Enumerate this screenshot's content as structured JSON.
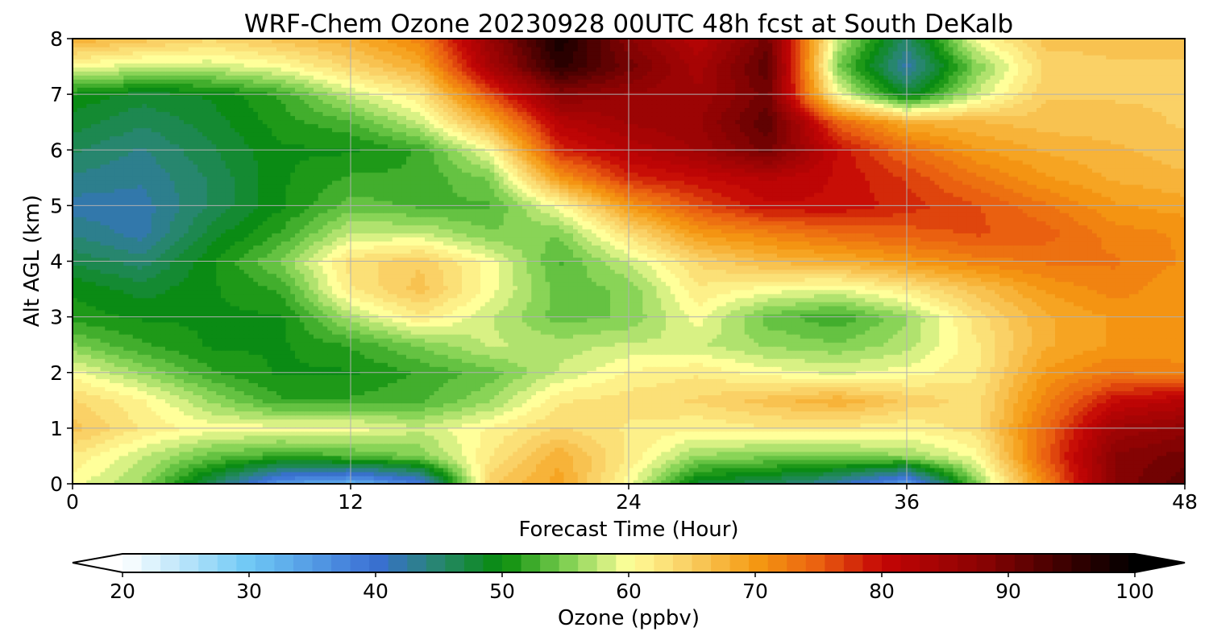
{
  "chart_data": {
    "type": "heatmap",
    "title": "WRF-Chem Ozone  20230928 00UTC 48h fcst at South DeKalb",
    "xlabel": "Forecast Time (Hour)",
    "ylabel": "Alt AGL (km)",
    "xlim": [
      0,
      48
    ],
    "ylim": [
      0,
      8
    ],
    "x_ticks": [
      0,
      12,
      24,
      36,
      48
    ],
    "y_ticks": [
      0,
      1,
      2,
      3,
      4,
      5,
      6,
      7,
      8
    ],
    "grid": true,
    "colorbar": {
      "label": "Ozone  (ppbv)",
      "ticks": [
        20,
        30,
        40,
        50,
        60,
        70,
        80,
        90,
        100
      ],
      "range": [
        20,
        100
      ],
      "extend": "both",
      "orientation": "horizontal",
      "placement": "bottom",
      "anchors": [
        {
          "value": 20,
          "color": "#ffffff"
        },
        {
          "value": 30,
          "color": "#6ec8f5"
        },
        {
          "value": 40,
          "color": "#3a6fd4"
        },
        {
          "value": 45,
          "color": "#27866e"
        },
        {
          "value": 50,
          "color": "#078c0a"
        },
        {
          "value": 55,
          "color": "#7ccf50"
        },
        {
          "value": 60,
          "color": "#ffff9a"
        },
        {
          "value": 65,
          "color": "#f9cc60"
        },
        {
          "value": 70,
          "color": "#f59a12"
        },
        {
          "value": 75,
          "color": "#ea6010"
        },
        {
          "value": 80,
          "color": "#c40505"
        },
        {
          "value": 88,
          "color": "#8a0303"
        },
        {
          "value": 96,
          "color": "#2a0000"
        },
        {
          "value": 100,
          "color": "#000000"
        }
      ]
    },
    "x": [
      0,
      3,
      6,
      9,
      12,
      15,
      18,
      21,
      24,
      27,
      30,
      33,
      36,
      39,
      42,
      45,
      48
    ],
    "y": [
      0,
      0.5,
      1,
      1.5,
      2,
      2.5,
      3,
      3.5,
      4,
      4.5,
      5,
      5.5,
      6,
      6.5,
      7,
      7.5,
      8
    ],
    "z": [
      [
        60,
        56,
        46,
        35,
        32,
        38,
        65,
        69,
        60,
        48,
        46,
        42,
        34,
        55,
        72,
        88,
        92
      ],
      [
        62,
        58,
        54,
        52,
        53,
        55,
        62,
        68,
        62,
        56,
        55,
        55,
        56,
        60,
        75,
        88,
        90
      ],
      [
        66,
        62,
        60,
        60,
        60,
        58,
        61,
        64,
        62,
        61,
        62,
        62,
        61,
        63,
        74,
        85,
        87
      ],
      [
        64,
        61,
        56,
        52,
        52,
        53,
        56,
        62,
        63,
        64,
        66,
        68,
        65,
        63,
        72,
        80,
        82
      ],
      [
        60,
        56,
        52,
        50,
        50,
        52,
        54,
        58,
        61,
        62,
        60,
        59,
        60,
        62,
        70,
        73,
        72
      ],
      [
        55,
        52,
        50,
        50,
        52,
        55,
        58,
        57,
        58,
        58,
        56,
        55,
        57,
        62,
        68,
        70,
        70
      ],
      [
        51,
        50,
        50,
        50,
        57,
        62,
        58,
        54,
        55,
        60,
        54,
        52,
        56,
        63,
        68,
        70,
        70
      ],
      [
        50,
        48,
        50,
        52,
        62,
        66,
        60,
        54,
        55,
        62,
        60,
        59,
        62,
        66,
        70,
        72,
        70
      ],
      [
        47,
        45,
        50,
        55,
        63,
        65,
        60,
        53,
        58,
        64,
        67,
        68,
        70,
        72,
        73,
        73,
        71
      ],
      [
        44,
        42,
        48,
        52,
        58,
        58,
        55,
        55,
        63,
        70,
        72,
        74,
        75,
        76,
        75,
        72,
        71
      ],
      [
        42,
        42,
        46,
        50,
        54,
        53,
        53,
        60,
        70,
        76,
        80,
        80,
        78,
        76,
        73,
        70,
        69
      ],
      [
        44,
        43,
        46,
        50,
        52,
        52,
        55,
        70,
        78,
        80,
        82,
        80,
        77,
        73,
        70,
        68,
        67
      ],
      [
        46,
        44,
        47,
        50,
        50,
        52,
        60,
        78,
        82,
        85,
        90,
        80,
        74,
        70,
        68,
        67,
        66
      ],
      [
        48,
        46,
        48,
        51,
        53,
        58,
        68,
        82,
        85,
        86,
        92,
        75,
        68,
        67,
        66,
        66,
        65
      ],
      [
        50,
        48,
        49,
        52,
        58,
        62,
        76,
        88,
        86,
        85,
        90,
        60,
        48,
        58,
        65,
        65,
        65
      ],
      [
        60,
        58,
        58,
        60,
        64,
        68,
        84,
        96,
        90,
        84,
        92,
        55,
        42,
        55,
        64,
        65,
        65
      ],
      [
        68,
        66,
        64,
        66,
        68,
        72,
        86,
        98,
        88,
        82,
        90,
        58,
        45,
        60,
        66,
        66,
        66
      ]
    ]
  }
}
